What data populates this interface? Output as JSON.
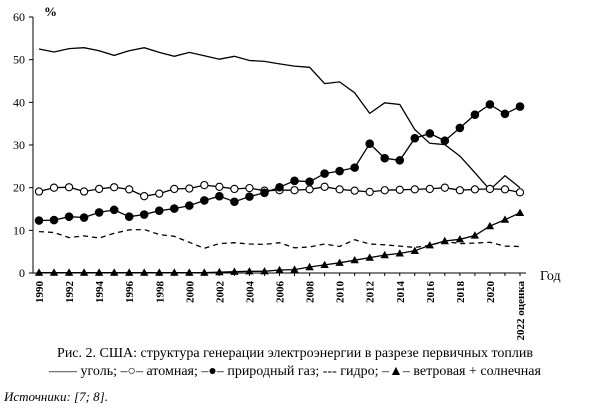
{
  "chart_data": {
    "type": "line",
    "ylabel": "%",
    "xlabel": "Год",
    "ylim": [
      0,
      60
    ],
    "yticks": [
      0,
      10,
      20,
      30,
      40,
      50,
      60
    ],
    "grid": false,
    "x_tick_labels": [
      "1990",
      "1992",
      "1994",
      "1996",
      "1998",
      "2000",
      "2002",
      "2004",
      "2006",
      "2008",
      "2010",
      "2012",
      "2014",
      "2016",
      "2018",
      "2020",
      "2022 оценка"
    ],
    "x": [
      1990,
      1991,
      1992,
      1993,
      1994,
      1995,
      1996,
      1997,
      1998,
      1999,
      2000,
      2001,
      2002,
      2003,
      2004,
      2005,
      2006,
      2007,
      2008,
      2009,
      2010,
      2011,
      2012,
      2013,
      2014,
      2015,
      2016,
      2017,
      2018,
      2019,
      2020,
      2021,
      2022
    ],
    "series": [
      {
        "name": "уголь",
        "style": "solid",
        "marker": "none",
        "values": [
          52.5,
          51.8,
          52.6,
          52.8,
          52.1,
          51.0,
          52.1,
          52.8,
          51.7,
          50.8,
          51.7,
          50.9,
          50.1,
          50.8,
          49.8,
          49.6,
          49.0,
          48.5,
          48.2,
          44.4,
          44.8,
          42.2,
          37.4,
          39.9,
          39.5,
          33.6,
          30.4,
          30.1,
          27.4,
          23.5,
          19.5,
          22.8,
          20.0
        ]
      },
      {
        "name": "атомная",
        "style": "solid",
        "marker": "open-circle",
        "values": [
          19.1,
          20.0,
          20.1,
          19.1,
          19.7,
          20.1,
          19.6,
          18.0,
          18.6,
          19.7,
          19.8,
          20.6,
          20.2,
          19.7,
          19.9,
          19.3,
          19.4,
          19.4,
          19.6,
          20.2,
          19.6,
          19.3,
          19.0,
          19.4,
          19.5,
          19.6,
          19.7,
          20.0,
          19.4,
          19.6,
          19.7,
          19.6,
          18.9
        ]
      },
      {
        "name": "природный газ",
        "style": "solid",
        "marker": "filled-circle",
        "values": [
          12.3,
          12.4,
          13.2,
          13.0,
          14.2,
          14.8,
          13.2,
          13.7,
          14.6,
          15.1,
          15.8,
          17.0,
          18.0,
          16.7,
          17.9,
          18.8,
          20.1,
          21.6,
          21.4,
          23.3,
          23.9,
          24.7,
          30.3,
          26.9,
          26.4,
          31.6,
          32.7,
          31.0,
          34.0,
          37.1,
          39.5,
          37.3,
          39.0
        ]
      },
      {
        "name": "гидро",
        "style": "dashed",
        "marker": "none",
        "values": [
          9.7,
          9.5,
          8.3,
          8.7,
          8.2,
          9.3,
          10.1,
          10.2,
          9.0,
          8.6,
          7.2,
          5.8,
          6.9,
          7.1,
          6.8,
          6.7,
          7.1,
          5.9,
          6.1,
          6.8,
          6.2,
          7.8,
          6.8,
          6.6,
          6.3,
          6.0,
          6.5,
          7.4,
          6.9,
          7.0,
          7.2,
          6.3,
          6.2
        ]
      },
      {
        "name": "ветровая + солнечная",
        "style": "solid",
        "marker": "filled-triangle",
        "values": [
          0.1,
          0.1,
          0.1,
          0.1,
          0.1,
          0.1,
          0.1,
          0.1,
          0.1,
          0.1,
          0.1,
          0.1,
          0.2,
          0.3,
          0.4,
          0.4,
          0.7,
          0.8,
          1.4,
          1.9,
          2.4,
          3.0,
          3.6,
          4.2,
          4.6,
          5.2,
          6.5,
          7.5,
          7.9,
          8.8,
          11.0,
          12.5,
          14.1
        ]
      }
    ],
    "caption_title": "Рис. 2. США: структура генерации электроэнергии в разрезе первичных топлив",
    "legend_text": "—— уголь; –○– атомная; –●– природный газ; --- гидро; –▲– ветровая + солнечная",
    "source": "Источники: [7; 8]."
  }
}
